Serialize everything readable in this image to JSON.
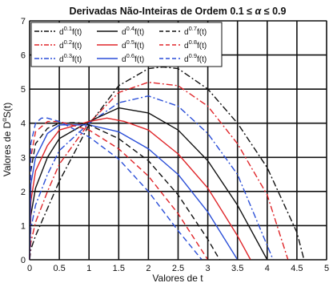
{
  "chart_data": {
    "type": "line",
    "title_text": "Derivadas Não-Inteiras de Ordem 0.1  ≤ ",
    "title_alpha": "α",
    "title_tail": " ≤  0.9",
    "xlabel": "Valores de t",
    "ylabel_prefix": "Valores de D",
    "ylabel_sup": "α",
    "ylabel_suffix": "S(t)",
    "xlim": [
      0,
      5
    ],
    "ylim": [
      0,
      7
    ],
    "xticks": [
      0,
      0.5,
      1,
      1.5,
      2,
      2.5,
      3,
      3.5,
      4,
      4.5,
      5
    ],
    "xtick_labels": [
      "0",
      "0.5",
      "1",
      "1.5",
      "2",
      "2.5",
      "3",
      "3.5",
      "4",
      "4.5",
      "5"
    ],
    "yticks": [
      0,
      1,
      2,
      3,
      4,
      5,
      6,
      7
    ],
    "ytick_labels": [
      "0",
      "1",
      "2",
      "3",
      "4",
      "5",
      "6",
      "7"
    ],
    "grid": true,
    "legend_position": "top-left",
    "series": [
      {
        "legend_base": "d",
        "legend_sup": "0.1",
        "legend_tail": "f(t)",
        "color": "#111111",
        "dash": "dashdot",
        "x": [
          0,
          0.02,
          0.1,
          0.3,
          0.5,
          1.0,
          1.5,
          2.0,
          2.25,
          2.5,
          3.0,
          3.5,
          4.0,
          4.5,
          4.62
        ],
        "y": [
          0,
          0.3,
          0.7,
          1.5,
          2.3,
          3.95,
          5.1,
          5.6,
          5.65,
          5.6,
          5.0,
          4.0,
          2.7,
          0.8,
          0
        ]
      },
      {
        "legend_base": "d",
        "legend_sup": "0.2",
        "legend_tail": "f(t)",
        "color": "#e0262a",
        "dash": "dashdot",
        "x": [
          0,
          0.02,
          0.1,
          0.3,
          0.5,
          1.0,
          1.5,
          2.0,
          2.5,
          3.0,
          3.5,
          4.0,
          4.35
        ],
        "y": [
          0,
          0.5,
          1.1,
          2.0,
          2.8,
          4.0,
          4.9,
          5.2,
          5.1,
          4.5,
          3.4,
          1.9,
          0
        ]
      },
      {
        "legend_base": "d",
        "legend_sup": "0.3",
        "legend_tail": "f(t)",
        "color": "#2b4fd8",
        "dash": "dashdot",
        "x": [
          0,
          0.02,
          0.1,
          0.3,
          0.5,
          1.0,
          1.5,
          2.0,
          2.5,
          3.0,
          3.5,
          4.1
        ],
        "y": [
          0,
          0.9,
          1.6,
          2.5,
          3.2,
          4.0,
          4.6,
          4.8,
          4.5,
          3.7,
          2.5,
          0
        ]
      },
      {
        "legend_base": "d",
        "legend_sup": "0.4",
        "legend_tail": "f(t)",
        "color": "#111111",
        "dash": "solid",
        "x": [
          0,
          0.02,
          0.1,
          0.3,
          0.5,
          1.0,
          1.5,
          2.0,
          2.5,
          3.0,
          3.5,
          4.0
        ],
        "y": [
          0,
          1.3,
          2.1,
          3.0,
          3.55,
          4.05,
          4.45,
          4.3,
          3.8,
          2.9,
          1.6,
          0
        ]
      },
      {
        "legend_base": "d",
        "legend_sup": "0.5",
        "legend_tail": "f(t)",
        "color": "#e0262a",
        "dash": "solid",
        "x": [
          0,
          0.02,
          0.1,
          0.3,
          0.5,
          1.0,
          1.3,
          1.6,
          2.0,
          2.5,
          3.0,
          3.5,
          3.72
        ],
        "y": [
          0,
          1.7,
          2.6,
          3.35,
          3.8,
          4.05,
          4.15,
          4.05,
          3.8,
          3.1,
          2.1,
          0.7,
          0
        ]
      },
      {
        "legend_base": "d",
        "legend_sup": "0.6",
        "legend_tail": "f(t)",
        "color": "#2b4fd8",
        "dash": "solid",
        "x": [
          0,
          0.02,
          0.1,
          0.3,
          0.5,
          1.0,
          1.5,
          2.0,
          2.5,
          3.0,
          3.5
        ],
        "y": [
          0,
          2.2,
          3.0,
          3.7,
          3.95,
          3.95,
          3.75,
          3.25,
          2.5,
          1.4,
          0
        ]
      },
      {
        "legend_base": "d",
        "legend_sup": "0.7",
        "legend_tail": "f(t)",
        "color": "#111111",
        "dash": "dashed",
        "x": [
          0,
          0.02,
          0.1,
          0.3,
          0.5,
          0.8,
          1.0,
          1.5,
          2.0,
          2.5,
          3.0,
          3.2
        ],
        "y": [
          0,
          2.6,
          3.4,
          3.85,
          4.0,
          4.02,
          3.95,
          3.55,
          2.9,
          1.9,
          0.6,
          0
        ]
      },
      {
        "legend_base": "d",
        "legend_sup": "0.8",
        "legend_tail": "f(t)",
        "color": "#e0262a",
        "dash": "dashed",
        "x": [
          0,
          0.02,
          0.1,
          0.3,
          0.5,
          1.0,
          1.5,
          2.0,
          2.5,
          3.0
        ],
        "y": [
          0,
          3.0,
          3.75,
          4.05,
          4.05,
          3.8,
          3.25,
          2.45,
          1.35,
          0
        ]
      },
      {
        "legend_base": "d",
        "legend_sup": "0.9",
        "legend_tail": "f(t)",
        "color": "#2b4fd8",
        "dash": "dashed",
        "x": [
          0,
          0.02,
          0.1,
          0.2,
          0.3,
          0.5,
          1.0,
          1.5,
          2.0,
          2.5,
          2.9
        ],
        "y": [
          0,
          3.4,
          4.0,
          4.15,
          4.15,
          4.05,
          3.6,
          2.95,
          2.0,
          0.85,
          0
        ]
      }
    ]
  }
}
